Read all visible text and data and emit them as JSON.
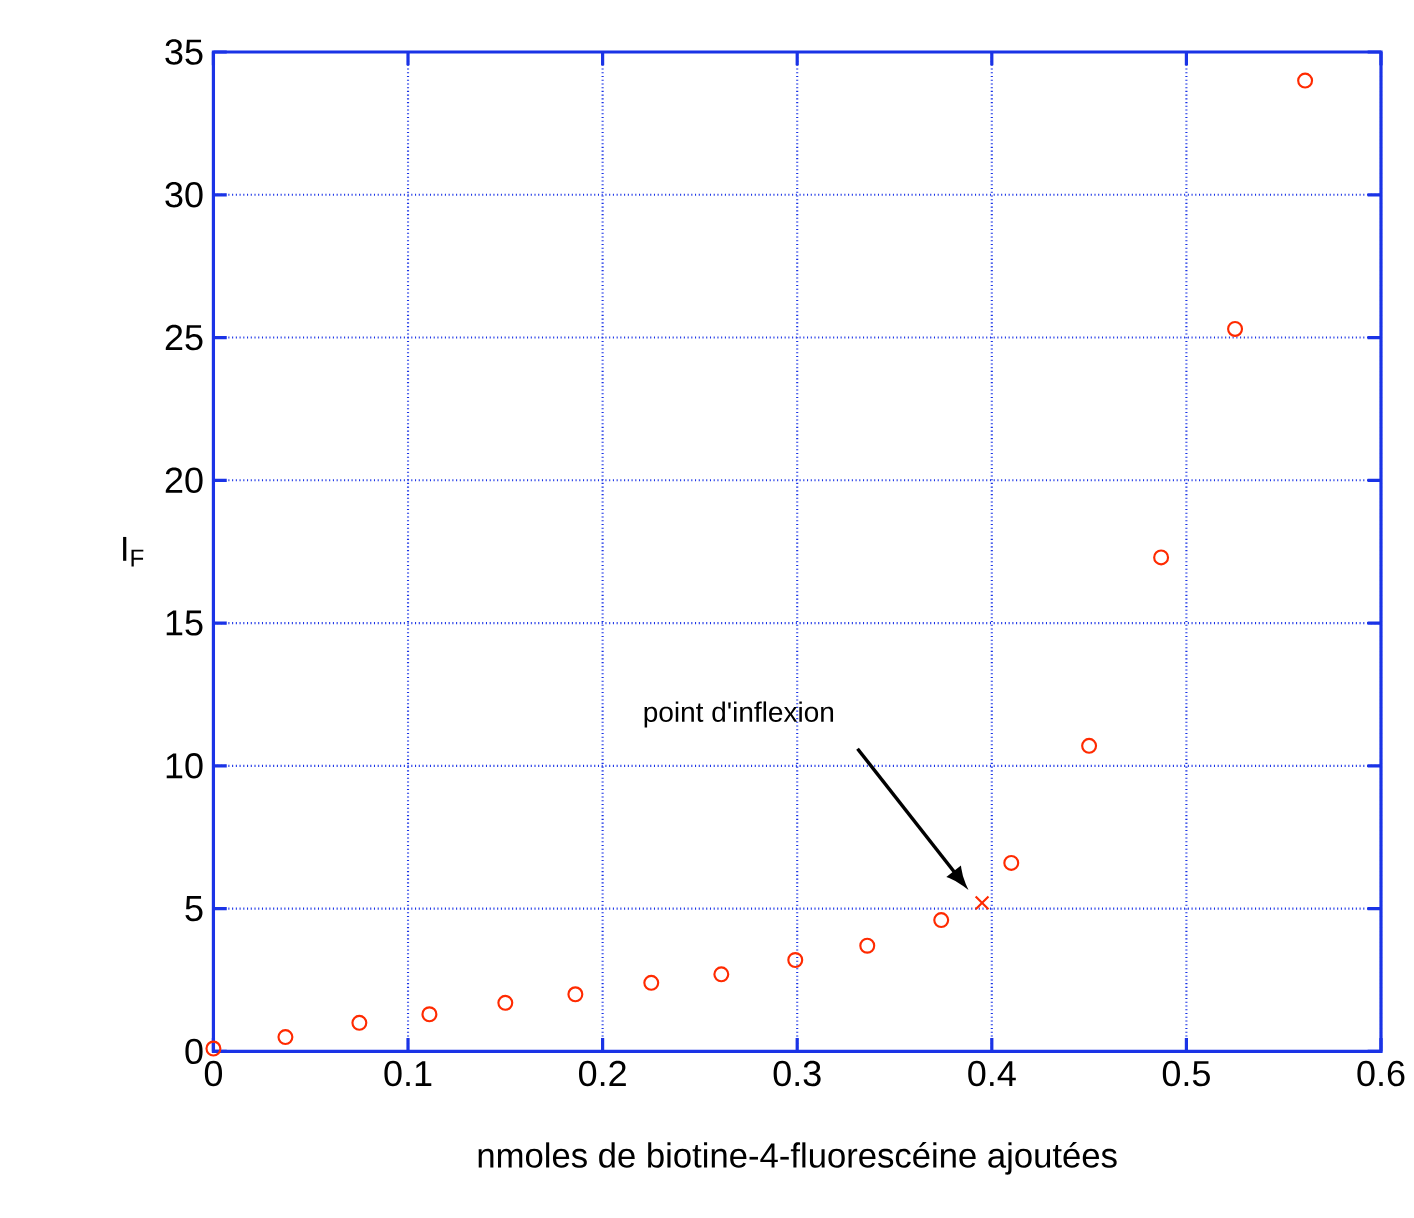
{
  "chart_data": {
    "type": "scatter",
    "xlabel": "nmoles de biotine-4-fluorescéine ajoutées",
    "ylabel": "I$_{F}$",
    "xlim": [
      0,
      0.6
    ],
    "ylim": [
      0,
      35
    ],
    "xticks": [
      0,
      0.1,
      0.2,
      0.3,
      0.4,
      0.5,
      0.6
    ],
    "yticks": [
      0,
      5,
      10,
      15,
      20,
      25,
      30,
      35
    ],
    "grid": true,
    "series": [
      {
        "color": "#ff2a00",
        "marker": "circle",
        "x": [
          0,
          0.037,
          0.075,
          0.111,
          0.15,
          0.186,
          0.225,
          0.261,
          0.299,
          0.336,
          0.374,
          0.41,
          0.45,
          0.487,
          0.525,
          0.561
        ],
        "values": [
          0.1,
          0.5,
          1.0,
          1.3,
          1.7,
          2.0,
          2.4,
          2.7,
          3.2,
          3.7,
          4.6,
          6.6,
          10.7,
          17.3,
          25.3,
          34.0
        ]
      },
      {
        "color": "#ff2a00",
        "marker": "cross",
        "x": [
          0.395
        ],
        "values": [
          5.2
        ]
      }
    ],
    "annotations": [
      "point d'inflexion"
    ]
  }
}
